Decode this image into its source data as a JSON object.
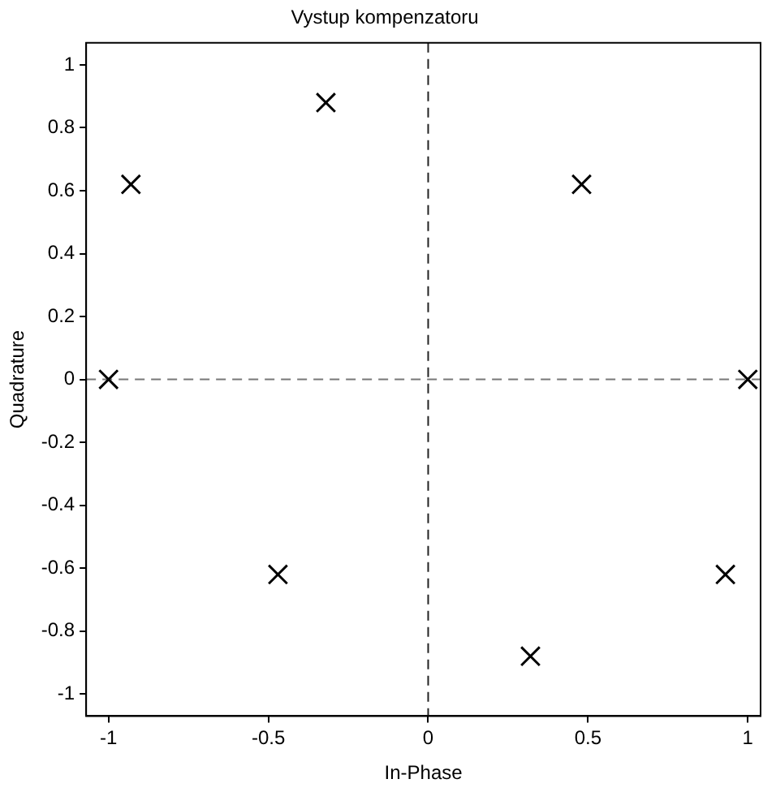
{
  "chart_data": {
    "type": "scatter",
    "title": "Vystup kompenzatoru",
    "xlabel": "In-Phase",
    "ylabel": "Quadrature",
    "x": [
      -1,
      -0.93,
      -0.32,
      0.48,
      1,
      0.93,
      0.32,
      -0.47
    ],
    "values": [
      0,
      0.62,
      0.88,
      0.62,
      0,
      -0.62,
      -0.88,
      -0.62
    ],
    "color": "#000000",
    "marker": "cross",
    "grid": false,
    "legend": false,
    "xlim": [
      -1.07,
      1.04
    ],
    "ylim": [
      -1.07,
      1.07
    ],
    "xticks": [
      -1,
      -0.5,
      0,
      0.5,
      1
    ],
    "yticks": [
      -1,
      -0.8,
      -0.6,
      -0.4,
      -0.2,
      0,
      0.2,
      0.4,
      0.6,
      0.8,
      1
    ],
    "ref_lines": [
      {
        "axis": "x",
        "value": 0,
        "line_style": "dashed",
        "color": "#222222"
      },
      {
        "axis": "y",
        "value": 0,
        "line_style": "dashed",
        "color": "#777777"
      }
    ]
  }
}
